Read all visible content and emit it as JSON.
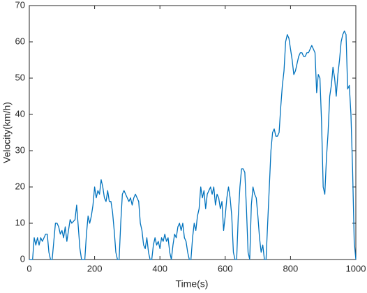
{
  "chart_data": {
    "type": "line",
    "x_label": "Time(s)",
    "y_label": "Velocity(km/h)",
    "x": [
      0,
      10,
      15,
      20,
      25,
      30,
      35,
      40,
      50,
      55,
      60,
      65,
      70,
      75,
      80,
      85,
      90,
      95,
      100,
      105,
      110,
      115,
      120,
      125,
      130,
      140,
      145,
      150,
      155,
      160,
      165,
      170,
      175,
      180,
      185,
      190,
      195,
      200,
      205,
      210,
      215,
      220,
      225,
      230,
      235,
      240,
      245,
      250,
      255,
      260,
      265,
      270,
      275,
      280,
      285,
      290,
      295,
      300,
      305,
      310,
      315,
      320,
      325,
      330,
      335,
      340,
      345,
      350,
      355,
      360,
      365,
      370,
      375,
      380,
      385,
      390,
      395,
      400,
      405,
      410,
      415,
      420,
      425,
      430,
      435,
      440,
      445,
      450,
      455,
      460,
      465,
      470,
      475,
      480,
      485,
      490,
      495,
      500,
      505,
      510,
      515,
      520,
      525,
      530,
      535,
      540,
      545,
      550,
      555,
      560,
      565,
      570,
      575,
      580,
      585,
      590,
      595,
      600,
      605,
      610,
      615,
      620,
      625,
      630,
      635,
      640,
      645,
      650,
      655,
      660,
      665,
      670,
      675,
      680,
      685,
      690,
      695,
      700,
      705,
      710,
      715,
      720,
      725,
      730,
      735,
      740,
      745,
      750,
      755,
      760,
      765,
      770,
      775,
      780,
      785,
      790,
      795,
      800,
      805,
      810,
      815,
      820,
      825,
      830,
      835,
      840,
      845,
      850,
      855,
      860,
      865,
      870,
      875,
      880,
      885,
      890,
      895,
      900,
      905,
      910,
      915,
      920,
      925,
      930,
      935,
      940,
      945,
      950,
      955,
      960,
      965,
      970,
      975,
      980,
      985,
      990,
      995,
      1000
    ],
    "series": [
      {
        "name": "Velocity",
        "color": "#0072bd",
        "values": [
          0,
          0,
          6,
          4,
          6,
          4,
          6,
          5,
          7,
          7,
          2,
          0,
          0,
          5,
          10,
          10,
          9,
          7,
          8,
          6,
          9,
          5,
          8,
          11,
          10,
          11,
          15,
          9,
          3,
          0,
          0,
          0,
          7,
          12,
          10,
          12,
          15,
          20,
          17,
          19,
          18,
          22,
          20,
          17,
          16,
          19,
          16,
          16,
          13,
          8,
          2,
          0,
          0,
          10,
          18,
          19,
          18,
          17,
          16,
          17,
          15,
          17,
          18,
          17,
          16,
          10,
          8,
          4,
          3,
          6,
          2,
          0,
          0,
          4,
          6,
          4,
          5,
          3,
          6,
          5,
          7,
          5,
          6,
          2,
          0,
          4,
          7,
          6,
          9,
          10,
          8,
          10,
          6,
          5,
          2,
          0,
          0,
          6,
          10,
          8,
          12,
          14,
          20,
          17,
          19,
          14,
          18,
          19,
          20,
          18,
          20,
          15,
          18,
          17,
          14,
          16,
          8,
          12,
          17,
          20,
          17,
          12,
          2,
          0,
          0,
          12,
          20,
          25,
          25,
          24,
          14,
          2,
          0,
          15,
          20,
          18,
          17,
          12,
          6,
          2,
          4,
          0,
          0,
          10,
          20,
          30,
          35,
          36,
          34,
          34,
          35,
          42,
          48,
          52,
          60,
          62,
          61,
          58,
          55,
          51,
          52,
          54,
          56,
          57,
          57,
          56,
          56,
          57,
          57,
          58,
          59,
          58,
          57,
          46,
          51,
          50,
          38,
          20,
          18,
          28,
          35,
          45,
          48,
          53,
          50,
          45,
          51,
          55,
          60,
          62,
          63,
          62,
          47,
          48,
          40,
          25,
          5,
          0
        ]
      }
    ],
    "xlim": [
      0,
      1000
    ],
    "xticks": [
      0,
      200,
      400,
      600,
      800,
      1000
    ],
    "ylim": [
      0,
      70
    ],
    "yticks": [
      0,
      10,
      20,
      30,
      40,
      50,
      60,
      70
    ]
  }
}
